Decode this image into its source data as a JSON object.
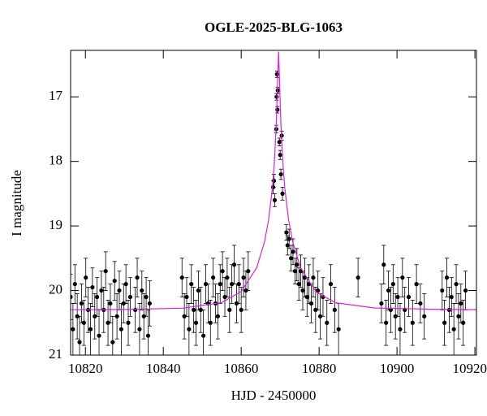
{
  "chart_data": {
    "type": "scatter",
    "title": "OGLE-2025-BLG-1063",
    "xlabel": "HJD - 2450000",
    "ylabel": "I magnitude",
    "xlim": [
      10816.2,
      10920.4
    ],
    "ylim": [
      21,
      16.28
    ],
    "xticks": [
      10820,
      10840,
      10860,
      10880,
      10900,
      10920
    ],
    "yticks": [
      17,
      18,
      19,
      20,
      21
    ],
    "series": [
      {
        "style": "points",
        "color": "#000000",
        "x": [
          10816.2,
          10816.8,
          10817.3,
          10817.9,
          10818.5,
          10819.0,
          10819.6,
          10820.1,
          10820.7,
          10821.3,
          10821.8,
          10822.4,
          10823.0,
          10823.5,
          10824.1,
          10824.7,
          10825.2,
          10825.8,
          10826.4,
          10827.0,
          10827.5,
          10828.1,
          10828.7,
          10829.2,
          10829.8,
          10830.4,
          10831.0,
          10831.5,
          10832.8,
          10833.3,
          10833.9,
          10834.5,
          10835.0,
          10835.6,
          10836.1,
          10836.5,
          10844.8,
          10845.4,
          10846.0,
          10846.6,
          10847.2,
          10847.8,
          10848.4,
          10849.0,
          10849.6,
          10850.3,
          10850.9,
          10851.5,
          10852.1,
          10852.8,
          10853.4,
          10854.0,
          10854.6,
          10855.2,
          10855.8,
          10856.4,
          10857.0,
          10857.6,
          10858.2,
          10858.8,
          10859.4,
          10860.0,
          10860.6,
          10861.2,
          10861.8,
          10868.2,
          10868.4,
          10868.6,
          10869.0,
          10869.1,
          10869.2,
          10869.3,
          10869.4,
          10869.8,
          10870.0,
          10870.2,
          10870.4,
          10870.6,
          10871.6,
          10871.9,
          10872.3,
          10872.8,
          10873.3,
          10873.8,
          10874.3,
          10874.8,
          10875.3,
          10875.8,
          10876.3,
          10876.9,
          10877.4,
          10878.0,
          10878.5,
          10879.1,
          10879.7,
          10880.3,
          10881.0,
          10882.0,
          10883.0,
          10884.0,
          10885.0,
          10890.0,
          10896.0,
          10896.6,
          10897.2,
          10897.8,
          10898.4,
          10899.0,
          10899.6,
          10900.2,
          10900.8,
          10901.4,
          10902.0,
          10903.0,
          10904.0,
          10905.0,
          10906.0,
          10907.0,
          10911.6,
          10912.2,
          10912.8,
          10913.4,
          10914.0,
          10914.6,
          10915.2,
          10915.8,
          10916.4,
          10917.0,
          10917.6
        ],
        "values": [
          20.1,
          20.6,
          19.9,
          20.4,
          20.8,
          20.2,
          20.5,
          19.8,
          20.3,
          20.6,
          19.95,
          20.4,
          20.1,
          20.7,
          20.0,
          20.3,
          19.7,
          20.5,
          20.2,
          20.8,
          19.85,
          20.4,
          20.0,
          20.6,
          20.2,
          19.9,
          20.5,
          20.1,
          20.3,
          19.8,
          20.6,
          20.0,
          20.4,
          20.1,
          20.7,
          20.2,
          19.8,
          20.4,
          20.1,
          20.6,
          19.9,
          20.3,
          20.5,
          20.0,
          20.3,
          20.7,
          19.9,
          20.2,
          20.5,
          19.8,
          20.2,
          20.4,
          19.9,
          19.7,
          20.1,
          19.8,
          20.3,
          19.9,
          19.6,
          20.2,
          19.9,
          20.3,
          19.8,
          20.0,
          19.7,
          18.4,
          18.3,
          18.6,
          17.5,
          17.0,
          16.65,
          17.2,
          16.9,
          17.7,
          17.9,
          18.2,
          17.6,
          18.5,
          19.1,
          19.3,
          19.2,
          19.5,
          19.4,
          19.7,
          19.6,
          19.9,
          19.7,
          20.0,
          19.8,
          20.1,
          19.9,
          20.2,
          19.8,
          20.3,
          20.0,
          20.4,
          20.1,
          20.5,
          19.9,
          20.3,
          20.6,
          19.8,
          20.2,
          19.6,
          20.5,
          20.0,
          20.3,
          19.9,
          20.4,
          20.1,
          20.6,
          19.8,
          20.3,
          20.1,
          20.5,
          19.9,
          20.2,
          20.4,
          20.0,
          20.5,
          19.8,
          20.3,
          20.1,
          20.6,
          19.9,
          20.4,
          20.2,
          20.5,
          20.0
        ],
        "errors": [
          0.35,
          0.4,
          0.3,
          0.35,
          0.4,
          0.3,
          0.35,
          0.3,
          0.35,
          0.4,
          0.3,
          0.35,
          0.3,
          0.4,
          0.3,
          0.35,
          0.3,
          0.35,
          0.3,
          0.4,
          0.3,
          0.35,
          0.3,
          0.4,
          0.3,
          0.3,
          0.35,
          0.3,
          0.35,
          0.3,
          0.4,
          0.3,
          0.35,
          0.3,
          0.4,
          0.35,
          0.3,
          0.35,
          0.3,
          0.4,
          0.3,
          0.35,
          0.35,
          0.3,
          0.35,
          0.4,
          0.3,
          0.3,
          0.35,
          0.3,
          0.3,
          0.35,
          0.3,
          0.3,
          0.3,
          0.3,
          0.35,
          0.3,
          0.3,
          0.3,
          0.3,
          0.35,
          0.3,
          0.3,
          0.3,
          0.1,
          0.1,
          0.1,
          0.06,
          0.05,
          0.05,
          0.05,
          0.05,
          0.06,
          0.07,
          0.08,
          0.07,
          0.1,
          0.12,
          0.15,
          0.15,
          0.2,
          0.2,
          0.2,
          0.25,
          0.25,
          0.25,
          0.3,
          0.3,
          0.3,
          0.3,
          0.3,
          0.3,
          0.35,
          0.3,
          0.35,
          0.3,
          0.35,
          0.3,
          0.35,
          0.4,
          0.3,
          0.3,
          0.3,
          0.35,
          0.3,
          0.35,
          0.3,
          0.35,
          0.3,
          0.4,
          0.3,
          0.35,
          0.3,
          0.35,
          0.3,
          0.3,
          0.35,
          0.3,
          0.35,
          0.3,
          0.35,
          0.3,
          0.4,
          0.3,
          0.35,
          0.3,
          0.35,
          0.3
        ]
      },
      {
        "style": "line",
        "color": "#e020e0",
        "x": [
          10815,
          10830,
          10845,
          10855,
          10860,
          10864,
          10866,
          10867,
          10868,
          10868.5,
          10869,
          10869.3,
          10869.6,
          10869.9,
          10870.2,
          10870.7,
          10871.2,
          10872.2,
          10873.2,
          10875.2,
          10879.2,
          10884.2,
          10894.2,
          10909.2,
          10922
        ],
        "values": [
          20.298,
          20.294,
          20.274,
          20.186,
          20.017,
          19.643,
          19.243,
          18.918,
          18.423,
          18.033,
          17.43,
          16.85,
          16.3,
          16.85,
          17.43,
          18.03,
          18.42,
          18.92,
          19.24,
          19.64,
          20.02,
          20.19,
          20.27,
          20.29,
          20.298
        ]
      }
    ]
  }
}
